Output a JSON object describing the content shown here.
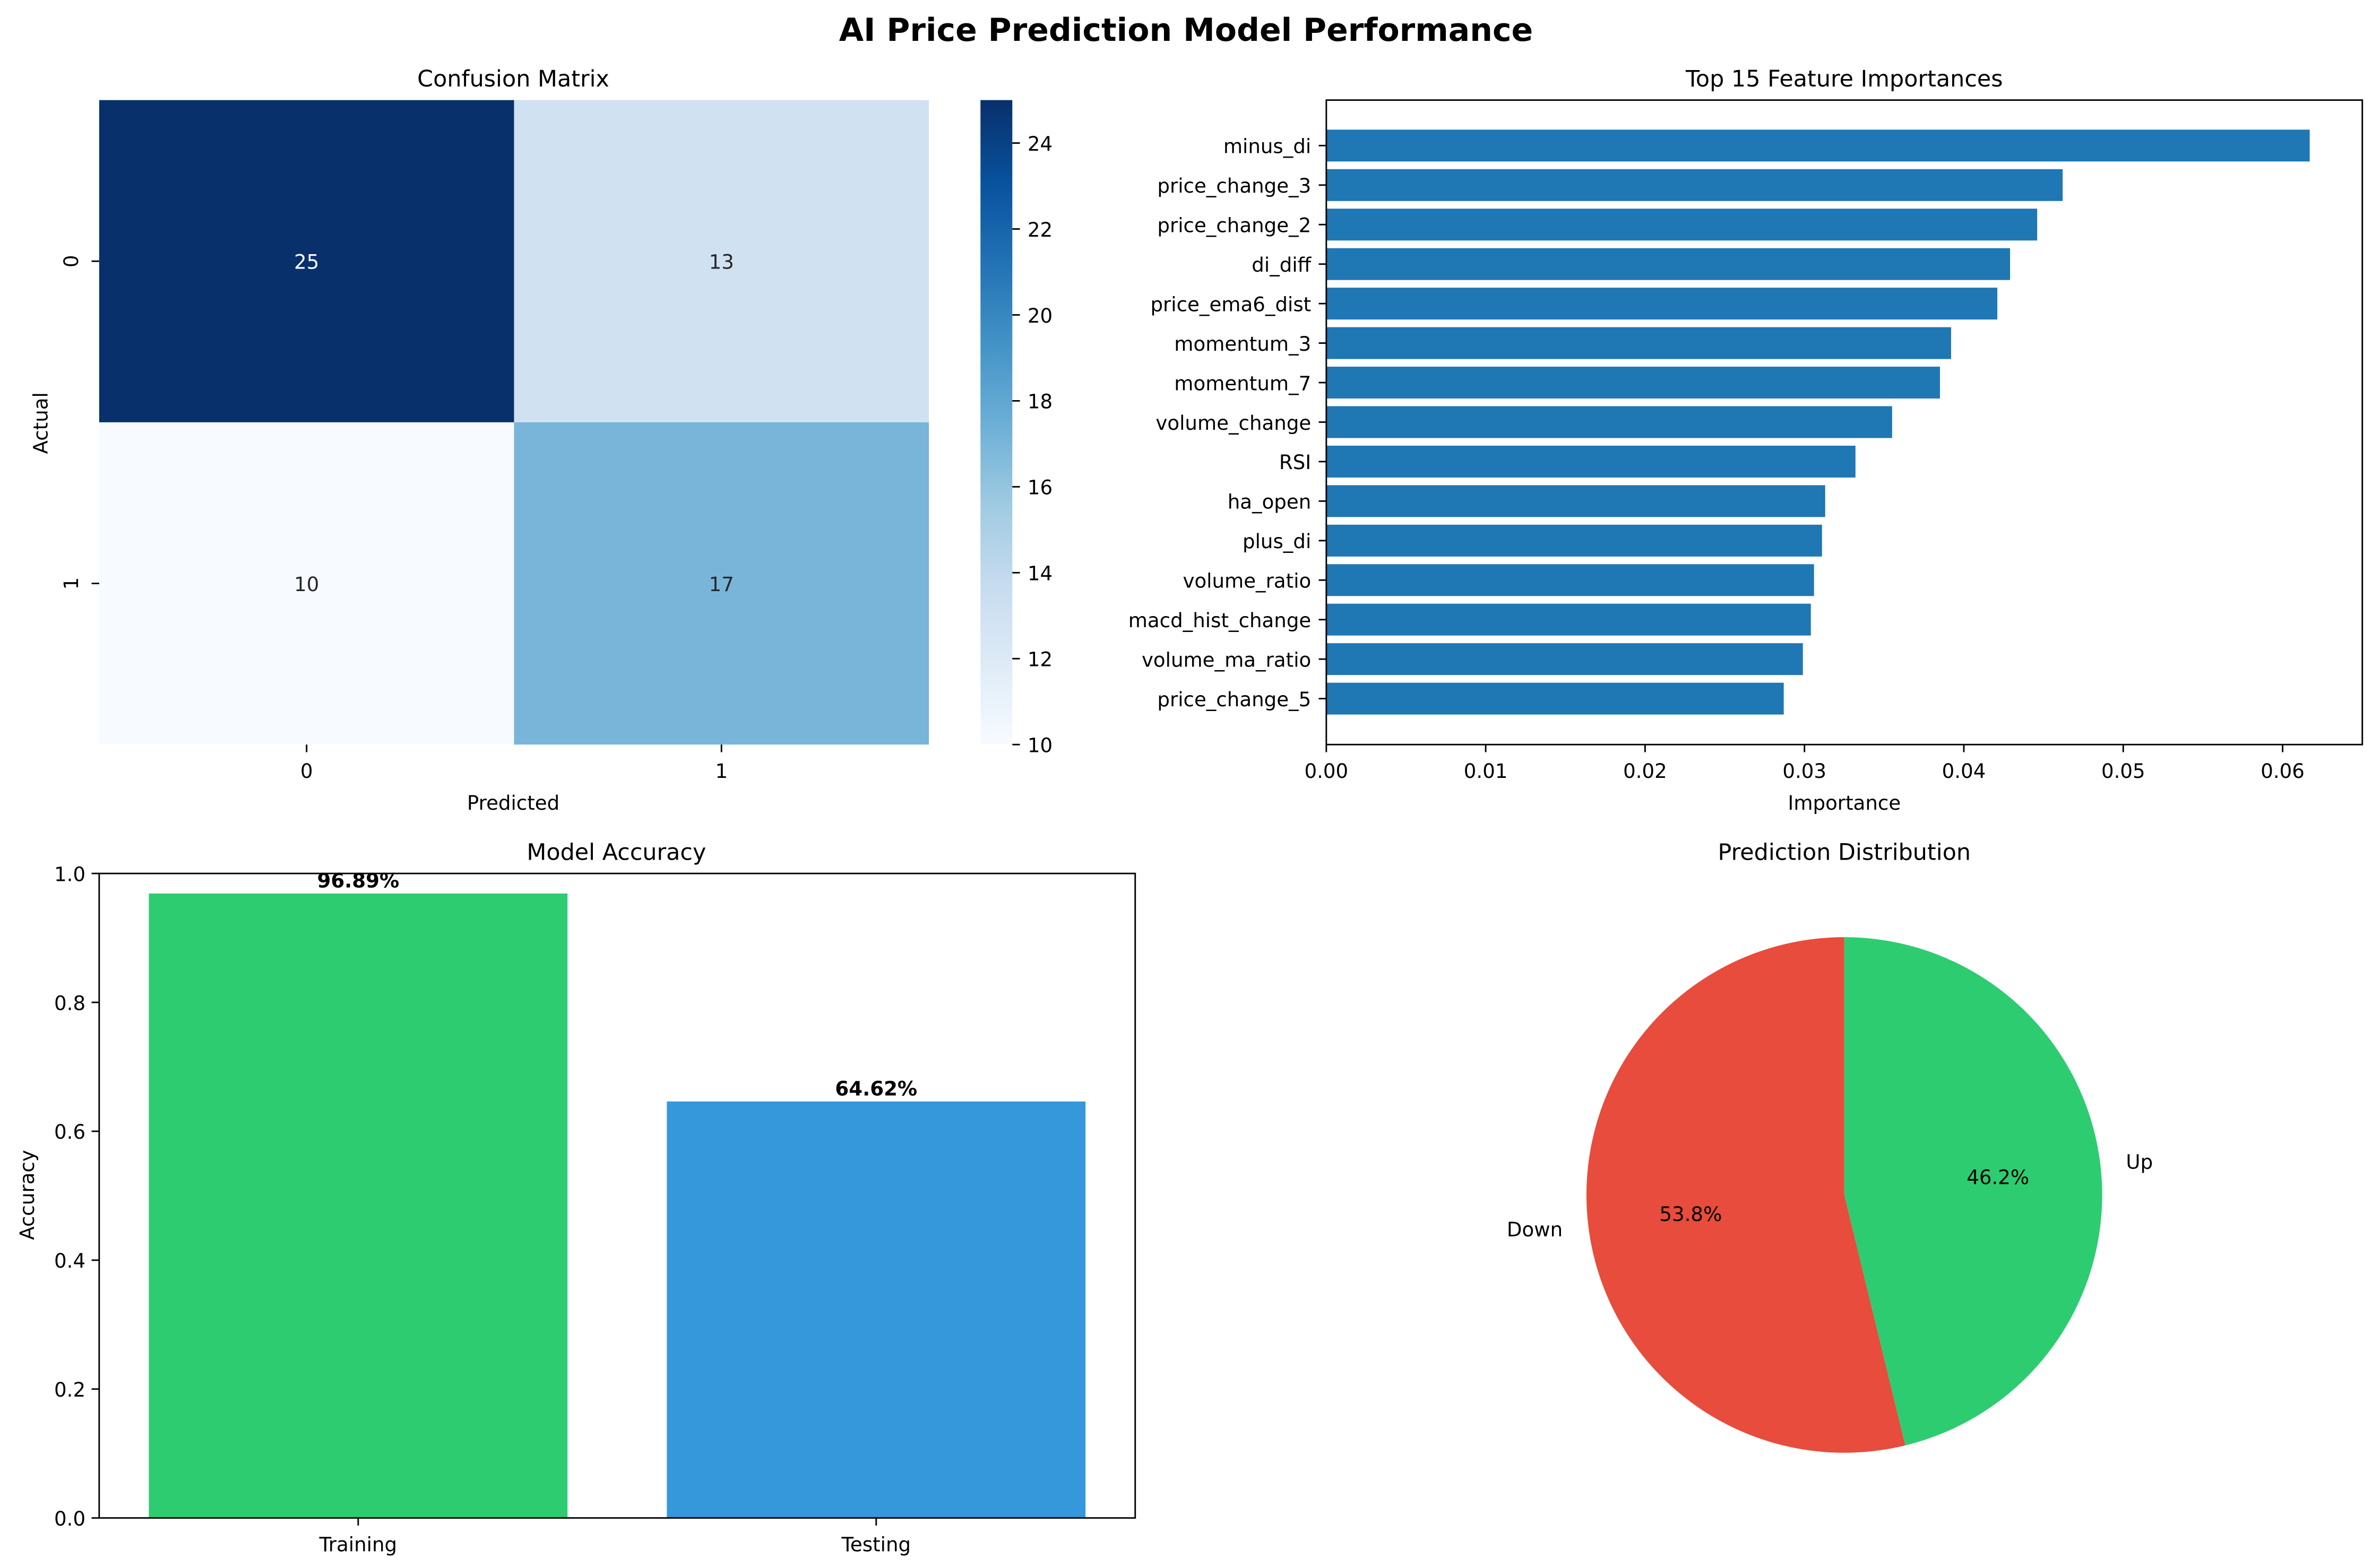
{
  "figure": {
    "title": "AI Price Prediction Model Performance",
    "colors": {
      "heatmap_low": "#f7fbff",
      "heatmap_high": "#08306b",
      "feature_bar": "#1f77b4",
      "training": "#2ecc71",
      "testing": "#3498db",
      "down": "#e74c3c",
      "up": "#2ecc71"
    }
  },
  "chart_data": [
    {
      "type": "heatmap",
      "title": "Confusion Matrix",
      "xlabel": "Predicted",
      "ylabel": "Actual",
      "x_categories": [
        "0",
        "1"
      ],
      "y_categories": [
        "0",
        "1"
      ],
      "values": [
        [
          25,
          13
        ],
        [
          10,
          17
        ]
      ],
      "colorbar": {
        "range": [
          10,
          25
        ],
        "ticks": [
          10,
          12,
          14,
          16,
          18,
          20,
          22,
          24
        ],
        "colormap": "Blues"
      }
    },
    {
      "type": "bar",
      "orientation": "horizontal",
      "title": "Top 15 Feature Importances",
      "xlabel": "Importance",
      "ylabel": "",
      "xlim": [
        0,
        0.065
      ],
      "xticks": [
        "0.00",
        "0.01",
        "0.02",
        "0.03",
        "0.04",
        "0.05",
        "0.06"
      ],
      "categories": [
        "minus_di",
        "price_change_3",
        "price_change_2",
        "di_diff",
        "price_ema6_dist",
        "momentum_3",
        "momentum_7",
        "volume_change",
        "RSI",
        "ha_open",
        "plus_di",
        "volume_ratio",
        "macd_hist_change",
        "volume_ma_ratio",
        "price_change_5"
      ],
      "values": [
        0.0617,
        0.0462,
        0.0446,
        0.0429,
        0.0421,
        0.0392,
        0.0385,
        0.0355,
        0.0332,
        0.0313,
        0.0311,
        0.0306,
        0.0304,
        0.0299,
        0.0287
      ]
    },
    {
      "type": "bar",
      "title": "Model Accuracy",
      "xlabel": "",
      "ylabel": "Accuracy",
      "ylim": [
        0,
        1.0
      ],
      "yticks": [
        "0.0",
        "0.2",
        "0.4",
        "0.6",
        "0.8",
        "1.0"
      ],
      "categories": [
        "Training",
        "Testing"
      ],
      "values": [
        0.9689,
        0.6462
      ],
      "labels": [
        "96.89%",
        "64.62%"
      ]
    },
    {
      "type": "pie",
      "title": "Prediction Distribution",
      "categories": [
        "Down",
        "Up"
      ],
      "values": [
        53.8,
        46.2
      ],
      "labels": [
        "53.8%",
        "46.2%"
      ],
      "start_angle": 90,
      "direction": "counterclockwise"
    }
  ]
}
